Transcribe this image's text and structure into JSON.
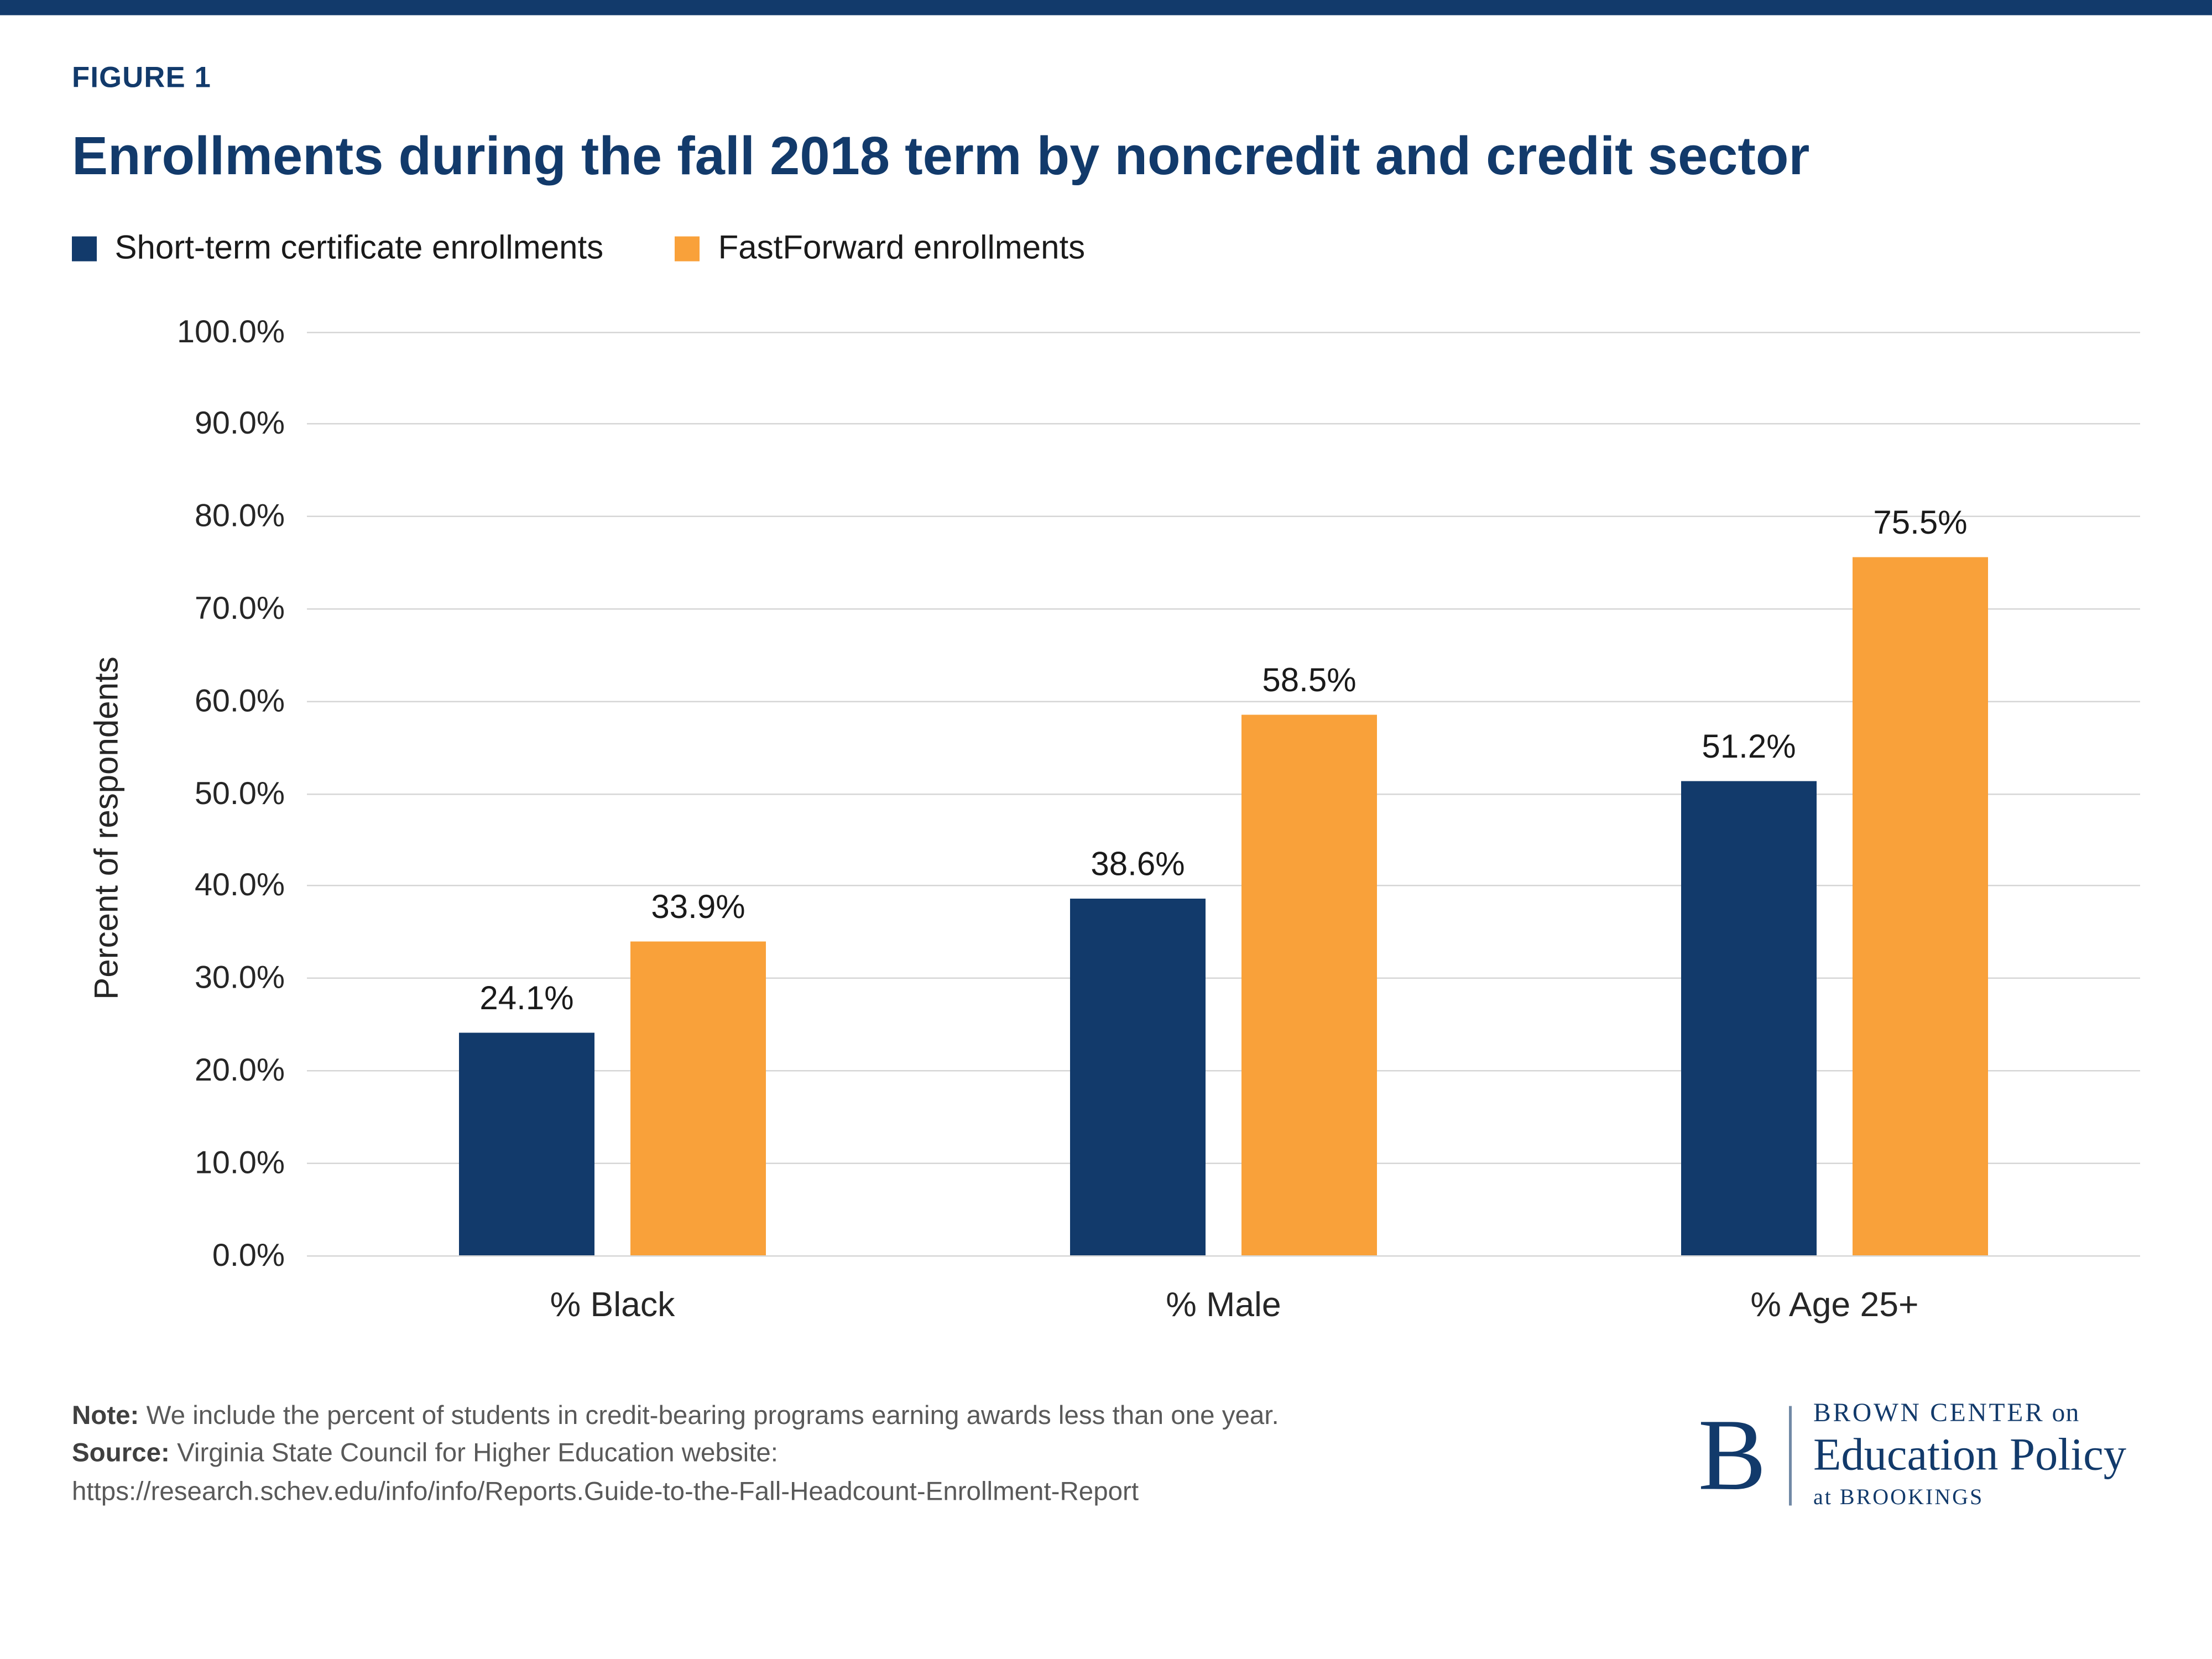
{
  "figure_label": "FIGURE 1",
  "title": "Enrollments during the fall 2018 term by noncredit and credit sector",
  "legend": [
    {
      "label": "Short-term certificate enrollments",
      "color": "#123a6b"
    },
    {
      "label": "FastForward enrollments",
      "color": "#f9a13a"
    }
  ],
  "chart_data": {
    "type": "bar",
    "categories": [
      "% Black",
      "% Male",
      "% Age 25+"
    ],
    "series": [
      {
        "name": "Short-term certificate enrollments",
        "color": "#123a6b",
        "values": [
          24.1,
          38.6,
          51.2
        ]
      },
      {
        "name": "FastForward enrollments",
        "color": "#f9a13a",
        "values": [
          33.9,
          58.5,
          75.5
        ]
      }
    ],
    "title": "Enrollments during the fall 2018 term by noncredit and credit sector",
    "xlabel": "",
    "ylabel": "Percent of respondents",
    "ylim": [
      0,
      100
    ],
    "ytick_step": 10,
    "ytick_format": "one_decimal_percent",
    "grid": true,
    "legend_position": "top-left",
    "data_labels": true
  },
  "footer": {
    "note_label": "Note:",
    "note_text": " We include the percent of students in credit-bearing programs earning awards less than one year.",
    "source_label": "Source:",
    "source_text": " Virginia State Council for Higher Education website:",
    "source_url": "https://research.schev.edu/info/info/Reports.Guide-to-the-Fall-Headcount-Enrollment-Report"
  },
  "logo": {
    "letter": "B",
    "line1_a": "BROWN CENTER",
    "line1_b": " on",
    "line2": "Education Policy",
    "line3": "at BROOKINGS"
  },
  "colors": {
    "navy": "#123a6b",
    "orange": "#f9a13a",
    "gridline": "#d6d6d6",
    "top_bar": "#123a6b"
  }
}
